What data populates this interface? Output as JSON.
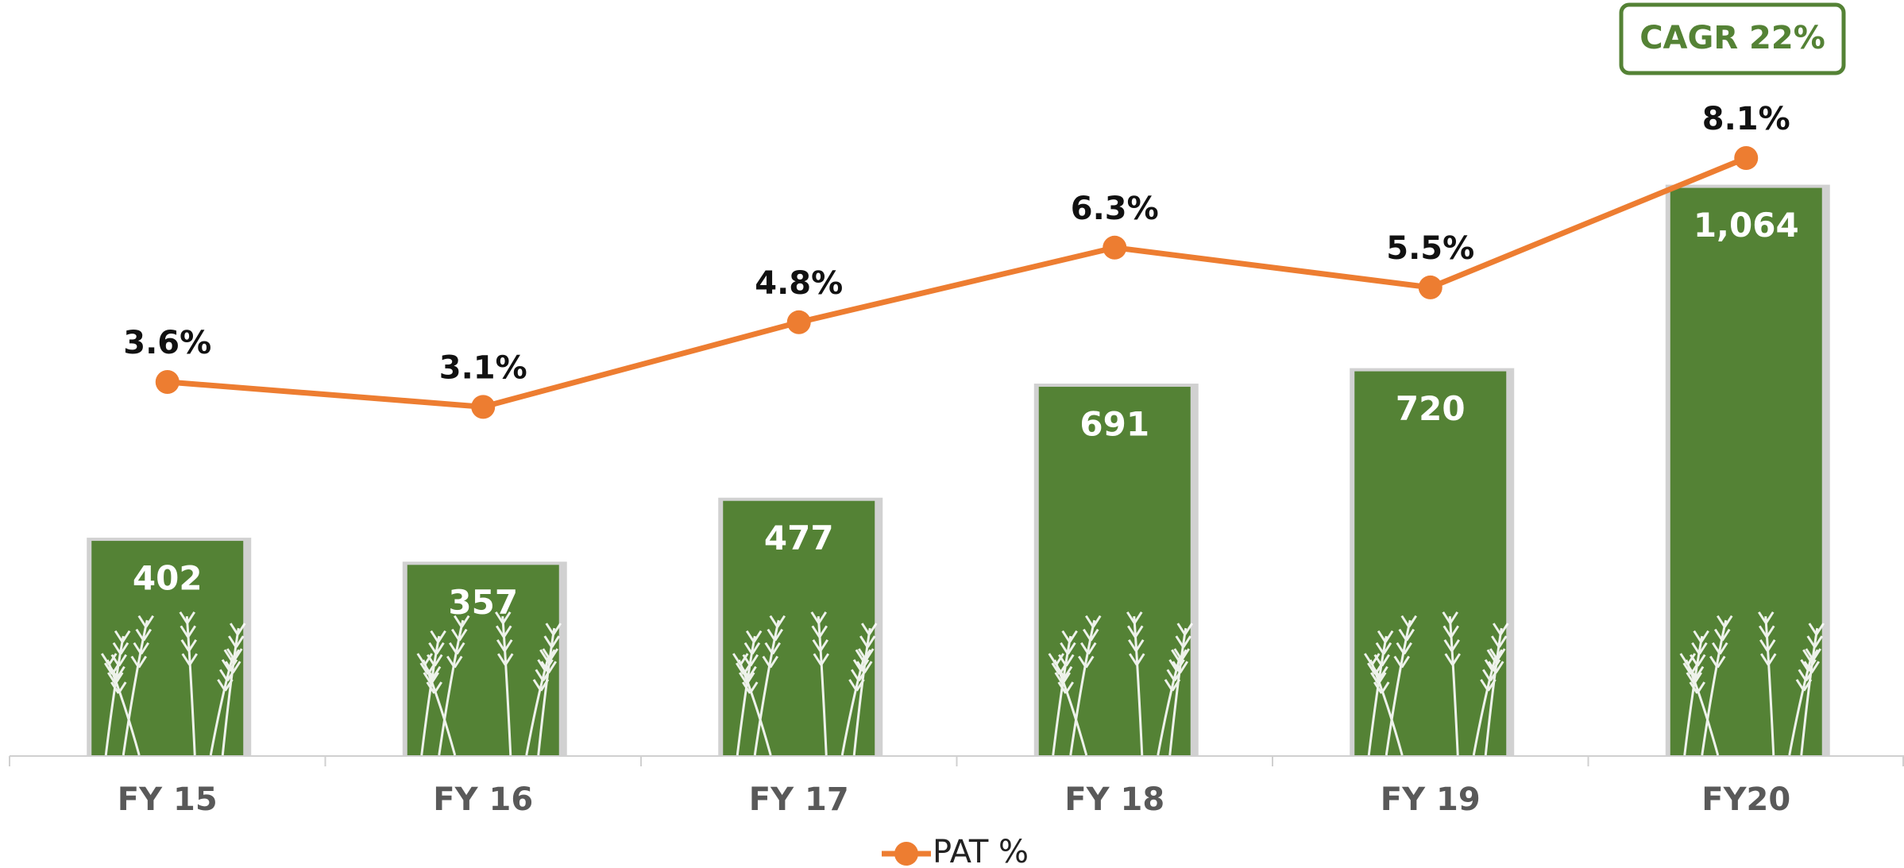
{
  "chart_data": {
    "type": "bar-line",
    "annotation": "CAGR 22%",
    "categories": [
      "FY 15",
      "FY 16",
      "FY 17",
      "FY 18",
      "FY 19",
      "FY20"
    ],
    "series": [
      {
        "type": "bar",
        "color": "#548235",
        "values": [
          402,
          357,
          477,
          691,
          720,
          1064
        ],
        "value_labels": [
          "402",
          "357",
          "477",
          "691",
          "720",
          "1,064"
        ]
      },
      {
        "type": "line",
        "name": "PAT %",
        "color": "#ed7d31",
        "axis": "y2",
        "values": [
          3.6,
          3.1,
          4.8,
          6.3,
          5.5,
          8.1
        ],
        "value_labels": [
          "3.6%",
          "3.1%",
          "4.8%",
          "6.3%",
          "5.5%",
          "8.1%"
        ]
      }
    ],
    "ylim": [
      0,
      1400
    ],
    "y2lim": [
      -3.9,
      11.1
    ],
    "legend": "bottom"
  }
}
